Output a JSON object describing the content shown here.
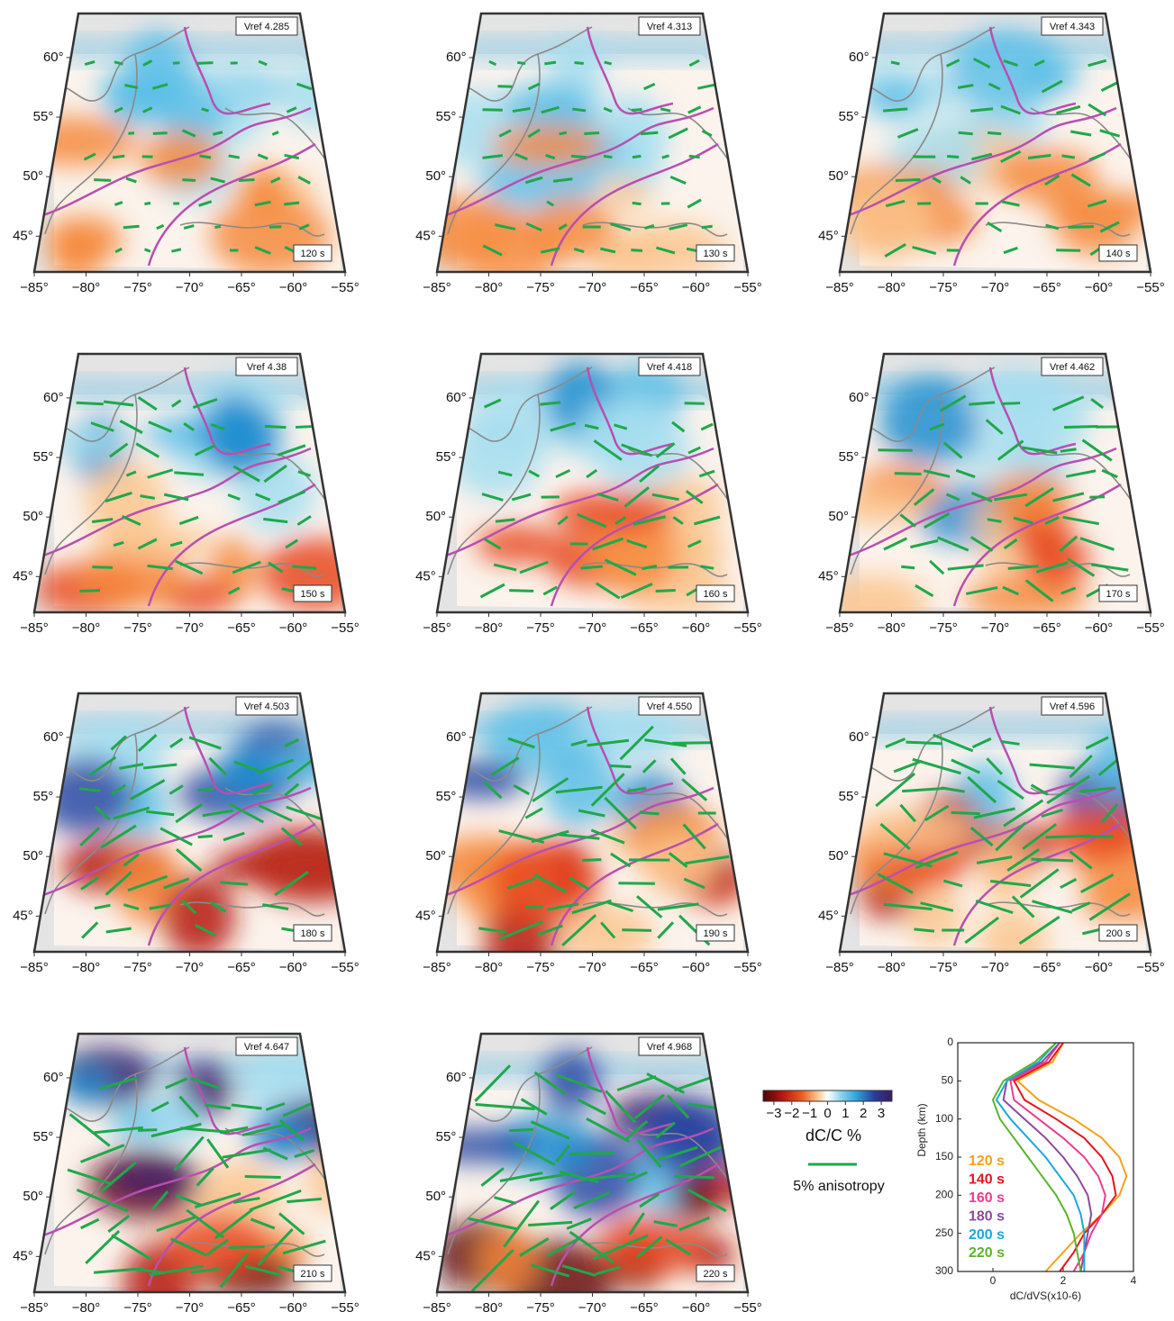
{
  "maps": {
    "xlim": [
      -85,
      -55
    ],
    "ylim": [
      42,
      63.7
    ],
    "xticks": [
      {
        "value": -85,
        "label": "−85°"
      },
      {
        "value": -80,
        "label": "−80°"
      },
      {
        "value": -75,
        "label": "−75°"
      },
      {
        "value": -70,
        "label": "−70°"
      },
      {
        "value": -65,
        "label": "−65°"
      },
      {
        "value": -60,
        "label": "−60°"
      },
      {
        "value": -55,
        "label": "−55°"
      }
    ],
    "yticks": [
      {
        "value": 45,
        "label": "45°"
      },
      {
        "value": 50,
        "label": "50°"
      },
      {
        "value": 55,
        "label": "55°"
      },
      {
        "value": 60,
        "label": "60°"
      }
    ],
    "panels": [
      {
        "vref": "Vref 4.285",
        "period": "120 s"
      },
      {
        "vref": "Vref 4.313",
        "period": "130 s"
      },
      {
        "vref": "Vref 4.343",
        "period": "140 s"
      },
      {
        "vref": "Vref 4.38",
        "period": "150 s"
      },
      {
        "vref": "Vref 4.418",
        "period": "160 s"
      },
      {
        "vref": "Vref 4.462",
        "period": "170 s"
      },
      {
        "vref": "Vref 4.503",
        "period": "180 s"
      },
      {
        "vref": "Vref 4.550",
        "period": "190 s"
      },
      {
        "vref": "Vref 4.596",
        "period": "200 s"
      },
      {
        "vref": "Vref 4.647",
        "period": "210 s"
      },
      {
        "vref": "Vref 4.968",
        "period": "220 s"
      }
    ]
  },
  "colorbar": {
    "label": "dC/C %",
    "lim": [
      -3.6,
      3.6
    ],
    "ticks": [
      {
        "value": -3,
        "label": "−3"
      },
      {
        "value": -2,
        "label": "−2"
      },
      {
        "value": -1,
        "label": "−1"
      },
      0,
      1,
      2,
      3
    ]
  },
  "legend": {
    "anisotropy": "5% anisotropy"
  },
  "chart_data": {
    "type": "line",
    "xlabel": "dC/dVS(x10-6)",
    "ylabel": "Depth (km)",
    "xlim": [
      -1,
      4
    ],
    "ylim": [
      0,
      300
    ],
    "xticks": [
      0,
      2,
      4
    ],
    "yticks": [
      0,
      50,
      100,
      150,
      200,
      250,
      300
    ],
    "y": [
      0,
      25,
      50,
      75,
      100,
      125,
      150,
      175,
      200,
      225,
      250,
      275,
      300
    ],
    "series": [
      {
        "name": "120 s",
        "color": "#f5a01a",
        "values": [
          2.0,
          1.7,
          0.7,
          1.3,
          2.3,
          3.1,
          3.6,
          3.8,
          3.6,
          3.1,
          2.5,
          2.0,
          1.5
        ]
      },
      {
        "name": "140 s",
        "color": "#e8141c",
        "values": [
          2.0,
          1.6,
          0.6,
          0.9,
          1.8,
          2.6,
          3.1,
          3.4,
          3.5,
          3.1,
          2.6,
          2.3,
          1.9
        ]
      },
      {
        "name": "160 s",
        "color": "#ec3c8c",
        "values": [
          1.9,
          1.5,
          0.5,
          0.6,
          1.3,
          2.0,
          2.6,
          3.0,
          3.2,
          3.1,
          2.8,
          2.6,
          2.3
        ]
      },
      {
        "name": "180 s",
        "color": "#8c4a9c",
        "values": [
          1.9,
          1.4,
          0.4,
          0.3,
          0.9,
          1.5,
          2.0,
          2.4,
          2.7,
          2.8,
          2.7,
          2.6,
          2.5
        ]
      },
      {
        "name": "200 s",
        "color": "#1aa8d8",
        "values": [
          1.8,
          1.3,
          0.4,
          0.1,
          0.5,
          1.0,
          1.5,
          1.9,
          2.3,
          2.5,
          2.6,
          2.6,
          2.6
        ]
      },
      {
        "name": "220 s",
        "color": "#5ab42a",
        "values": [
          1.8,
          1.2,
          0.3,
          0.0,
          0.2,
          0.6,
          1.0,
          1.4,
          1.8,
          2.1,
          2.3,
          2.4,
          2.5
        ]
      }
    ]
  }
}
